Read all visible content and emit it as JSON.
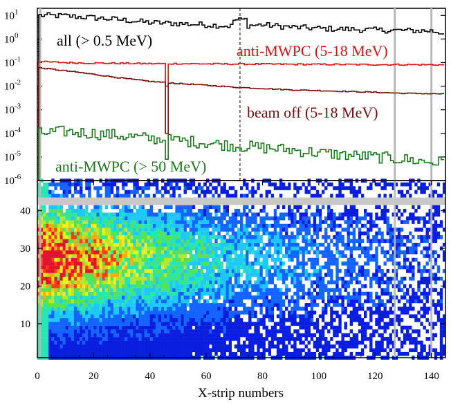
{
  "chart_data": [
    {
      "type": "line",
      "subtype": "step",
      "x_ticks": [],
      "xlim": [
        0,
        145
      ],
      "y_scale": "log",
      "ylim": [
        1e-06,
        20
      ],
      "y_tick_labels": [
        {
          "base": "10",
          "exp": "1",
          "value": 10
        },
        {
          "base": "10",
          "exp": "0",
          "value": 1
        },
        {
          "base": "10",
          "exp": "-1",
          "value": 0.1
        },
        {
          "base": "10",
          "exp": "-2",
          "value": 0.01
        },
        {
          "base": "10",
          "exp": "-3",
          "value": 0.001
        },
        {
          "base": "10",
          "exp": "-4",
          "value": 0.0001
        },
        {
          "base": "10",
          "exp": "-5",
          "value": 1e-05
        },
        {
          "base": "10",
          "exp": "-6",
          "value": 1e-06
        }
      ],
      "vertical_lines": [
        {
          "x": 72,
          "style": "dashed",
          "color": "#000000"
        },
        {
          "x": 1,
          "style": "solid",
          "color": "#b8b8b8"
        },
        {
          "x": 127,
          "style": "solid",
          "color": "#b8b8b8"
        },
        {
          "x": 140,
          "style": "solid",
          "color": "#b8b8b8"
        }
      ],
      "series": [
        {
          "name": "all (> 0.5 MeV)",
          "color": "#000000",
          "x": [
            1,
            10,
            20,
            30,
            40,
            50,
            60,
            70,
            80,
            90,
            100,
            110,
            120,
            130,
            140,
            144
          ],
          "values": [
            10,
            9.5,
            8,
            6.5,
            5,
            4.5,
            4,
            3.5,
            4,
            3.2,
            2.8,
            2.6,
            2.4,
            2.3,
            2.2,
            1.8
          ]
        },
        {
          "name": "anti-MWPC (5-18 MeV)",
          "color": "#e01010",
          "x": [
            1,
            10,
            20,
            30,
            40,
            50,
            60,
            70,
            80,
            90,
            100,
            110,
            120,
            130,
            140,
            144
          ],
          "values": [
            0.11,
            0.1,
            0.095,
            0.093,
            0.09,
            0.09,
            0.088,
            0.087,
            0.086,
            0.085,
            0.084,
            0.083,
            0.082,
            0.082,
            0.081,
            0.08
          ]
        },
        {
          "name": "beam off (5-18 MeV)",
          "color": "#7a0c0c",
          "x": [
            1,
            10,
            20,
            30,
            40,
            50,
            60,
            70,
            80,
            90,
            100,
            110,
            120,
            130,
            140,
            144
          ],
          "values": [
            0.06,
            0.045,
            0.032,
            0.022,
            0.016,
            0.013,
            0.011,
            0.009,
            0.008,
            0.007,
            0.0065,
            0.006,
            0.0055,
            0.005,
            0.0048,
            0.0047
          ]
        },
        {
          "name": "anti-MWPC (> 50 MeV)",
          "color": "#1a7a1a",
          "x": [
            1,
            10,
            20,
            30,
            40,
            50,
            60,
            70,
            80,
            90,
            100,
            110,
            120,
            130,
            140,
            144
          ],
          "values": [
            0.0001,
            0.00012,
            0.0001,
            8e-05,
            6e-05,
            5e-05,
            4e-05,
            3e-05,
            2.5e-05,
            2e-05,
            1.5e-05,
            1.2e-05,
            1e-05,
            8e-06,
            6e-06,
            6e-06
          ]
        }
      ],
      "dips": [
        {
          "x": 46,
          "series": "beam off (5-18 MeV)",
          "value": 0.0001
        },
        {
          "x": 46,
          "series": "anti-MWPC (5-18 MeV)",
          "value": 0.01
        },
        {
          "x": 46,
          "series": "anti-MWPC (> 50 MeV)",
          "value": 8e-06
        }
      ]
    },
    {
      "type": "heatmap",
      "xlabel": "X-strip numbers",
      "ylabel": "",
      "xlim": [
        0,
        145
      ],
      "ylim": [
        1,
        48
      ],
      "x_ticks": [
        "0",
        "20",
        "40",
        "60",
        "80",
        "100",
        "120",
        "140"
      ],
      "y_ticks": [
        "10",
        "20",
        "30",
        "40"
      ],
      "grid": false,
      "hot_region": {
        "x_range": [
          0,
          40
        ],
        "y_range": [
          20,
          35
        ]
      },
      "empty_rows": [
        42,
        43
      ],
      "grey_columns": [
        1,
        127,
        140
      ],
      "colorscale": [
        "#0a1ee0",
        "#1464ff",
        "#1ec8ff",
        "#28e6b4",
        "#5ae150",
        "#b4e632",
        "#f0f01e",
        "#ffaa14",
        "#ff3c14",
        "#e1142d"
      ]
    }
  ]
}
